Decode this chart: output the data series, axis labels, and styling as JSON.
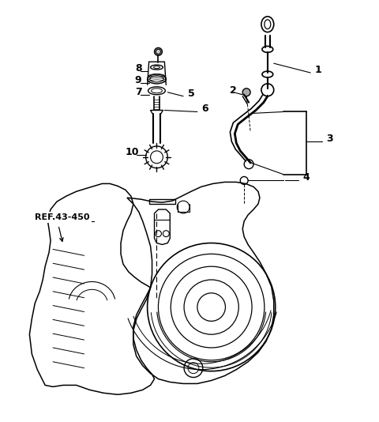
{
  "background_color": "#ffffff",
  "line_color": "#000000",
  "fig_width": 4.8,
  "fig_height": 5.34,
  "dpi": 100,
  "ref_label": "REF.43-450"
}
